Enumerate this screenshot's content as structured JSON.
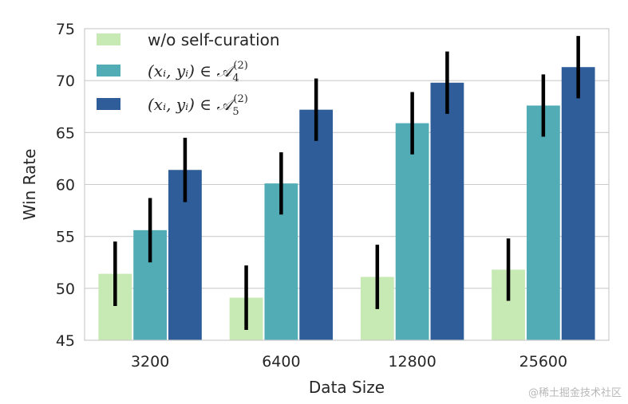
{
  "chart_data": {
    "type": "bar",
    "title": "",
    "xlabel": "Data Size",
    "ylabel": "Win Rate",
    "categories": [
      "3200",
      "6400",
      "12800",
      "25600"
    ],
    "ylim": [
      45,
      75
    ],
    "yticks": [
      45,
      50,
      55,
      60,
      65,
      70,
      75
    ],
    "grid": "horizontal",
    "legend_position": "top-left",
    "series": [
      {
        "name": "w/o self-curation",
        "color": "#c7e9b4",
        "values": [
          51.4,
          49.1,
          51.1,
          51.8
        ],
        "error": [
          3.1,
          3.1,
          3.1,
          3.0
        ]
      },
      {
        "name": "(x_i, y_i) ∈ A_4^(2)",
        "name_parts": {
          "main": "(xᵢ, yᵢ) ∈ 𝒜",
          "sub": "4",
          "sup": "(2)"
        },
        "color": "#52acb5",
        "values": [
          55.6,
          60.1,
          65.9,
          67.6
        ],
        "error": [
          3.1,
          3.0,
          3.0,
          3.0
        ]
      },
      {
        "name": "(x_i, y_i) ∈ A_5^(2)",
        "name_parts": {
          "main": "(xᵢ, yᵢ) ∈ 𝒜",
          "sub": "5",
          "sup": "(2)"
        },
        "color": "#2e5d99",
        "values": [
          61.4,
          67.2,
          69.8,
          71.3
        ],
        "error": [
          3.1,
          3.0,
          3.0,
          3.0
        ]
      }
    ],
    "error_bar_color": "#000000"
  },
  "watermark": "@稀土掘金技术社区"
}
